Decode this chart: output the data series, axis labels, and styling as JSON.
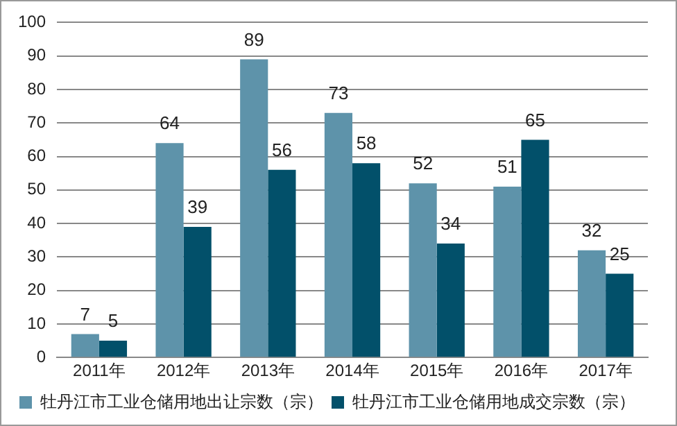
{
  "chart_data": {
    "type": "bar",
    "categories": [
      "2011年",
      "2012年",
      "2013年",
      "2014年",
      "2015年",
      "2016年",
      "2017年"
    ],
    "series": [
      {
        "name": "牡丹江市工业仓储用地出让宗数（宗）",
        "color": "#5e93aa",
        "values": [
          7,
          64,
          89,
          73,
          52,
          51,
          32
        ]
      },
      {
        "name": "牡丹江市工业仓储用地成交宗数（宗）",
        "color": "#02506a",
        "values": [
          5,
          39,
          56,
          58,
          34,
          65,
          25
        ]
      }
    ],
    "ylim": [
      0,
      100
    ],
    "yticks": [
      0,
      10,
      20,
      30,
      40,
      50,
      60,
      70,
      80,
      90,
      100
    ],
    "grid": "y",
    "legend": "bottom",
    "data_labels": true
  }
}
